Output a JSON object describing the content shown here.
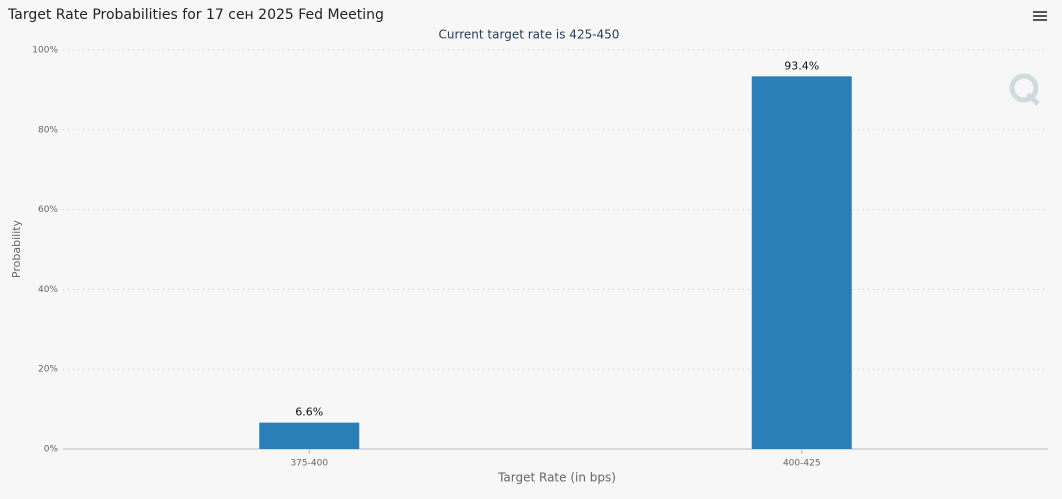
{
  "chart_data": {
    "type": "bar",
    "title": "Target Rate Probabilities for 17 сен 2025 Fed Meeting",
    "subtitle": "Current target rate is 425-450",
    "x_label": "Target Rate (in bps)",
    "y_label": "Probability",
    "categories": [
      "375-400",
      "400-425"
    ],
    "values": [
      6.6,
      93.4
    ],
    "value_labels": [
      "6.6%",
      "93.4%"
    ],
    "color": "#2b7fb8",
    "ylim": [
      0,
      100
    ],
    "yticks": [
      {
        "value": 0,
        "label": "0%"
      },
      {
        "value": 20,
        "label": "20%"
      },
      {
        "value": 40,
        "label": "40%"
      },
      {
        "value": 60,
        "label": "60%"
      },
      {
        "value": 80,
        "label": "80%"
      },
      {
        "value": 100,
        "label": "100%"
      }
    ],
    "grid": true
  }
}
